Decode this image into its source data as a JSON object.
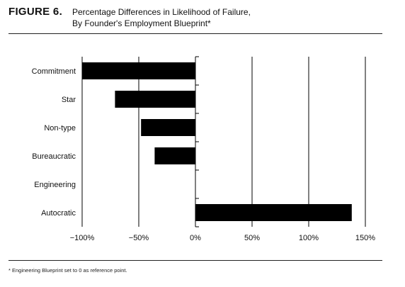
{
  "figure": {
    "label": "FIGURE 6.",
    "title_line1": "Percentage Differences in Likelihood of Failure,",
    "title_line2": "By Founder's Employment Blueprint*"
  },
  "footnote": "* Engineering Blueprint set to 0 as reference point.",
  "chart_data": {
    "type": "bar",
    "orientation": "horizontal",
    "title": "Percentage Differences in Likelihood of Failure, By Founder's Employment Blueprint*",
    "categories": [
      "Commitment",
      "Star",
      "Non-type",
      "Bureaucratic",
      "Engineering",
      "Autocratic"
    ],
    "values": [
      -100,
      -71,
      -48,
      -36,
      0,
      138
    ],
    "unit": "%",
    "xlim": [
      -100,
      150
    ],
    "xticks": [
      -100,
      -50,
      0,
      50,
      100,
      150
    ],
    "xtick_labels": [
      "−100%",
      "−50%",
      "0%",
      "50%",
      "100%",
      "150%"
    ],
    "grid": "vertical",
    "bar_color": "#000000"
  }
}
